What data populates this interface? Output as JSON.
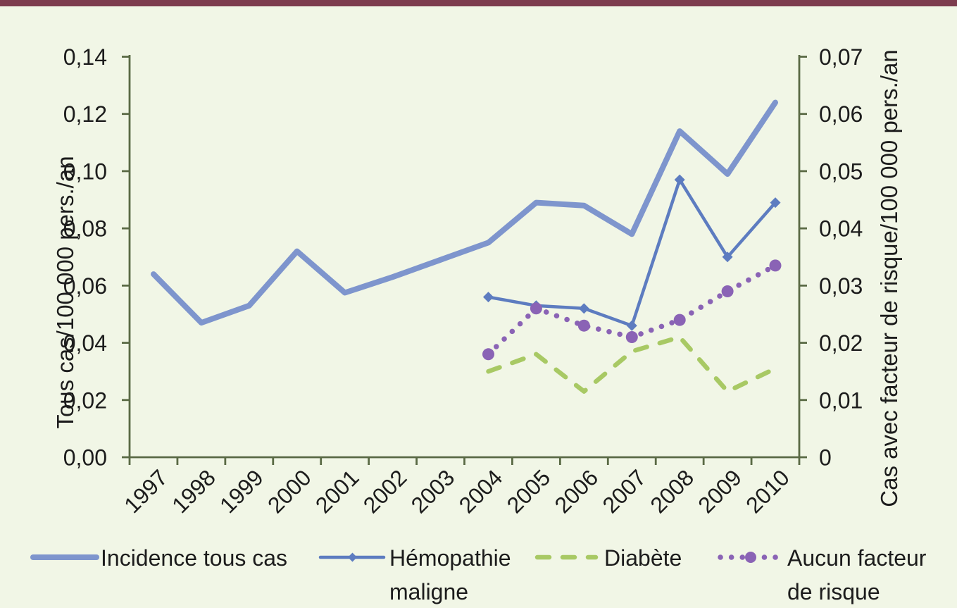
{
  "page": {
    "background_color": "#f1f6e6",
    "top_bar_color": "#7d3c4e"
  },
  "chart_data": {
    "type": "line",
    "title": "",
    "categories": [
      "1997",
      "1998",
      "1999",
      "2000",
      "2001",
      "2002",
      "2003",
      "2004",
      "2005",
      "2006",
      "2007",
      "2008",
      "2009",
      "2010"
    ],
    "left_axis": {
      "title": "Tous cas/100 000 pers./an",
      "min": 0,
      "max": 0.14,
      "tick_step": 0.02,
      "tick_labels": [
        "0,00",
        "0,02",
        "0,04",
        "0,06",
        "0,08",
        "0,10",
        "0,12",
        "0,14"
      ]
    },
    "right_axis": {
      "title": "Cas avec facteur de risque/100 000 pers./an",
      "min": 0,
      "max": 0.07,
      "tick_step": 0.01,
      "tick_labels": [
        "0",
        "0,01",
        "0,02",
        "0,03",
        "0,04",
        "0,05",
        "0,06",
        "0,07"
      ]
    },
    "axis_color": "#5a6a45",
    "text_color": "#1c1c1c",
    "grid": "off",
    "legend_position": "bottom",
    "series": [
      {
        "name": "Incidence tous cas",
        "axis": "left",
        "color": "#7e95cd",
        "style": "solid",
        "marker": "none",
        "line_width": 8,
        "start_year": "1997",
        "values": [
          0.064,
          0.047,
          0.053,
          0.072,
          0.0575,
          0.063,
          0.069,
          0.075,
          0.089,
          0.088,
          0.078,
          0.114,
          0.099,
          0.124
        ]
      },
      {
        "name": "Hémopathie maligne",
        "axis": "right",
        "color": "#5d7cc0",
        "style": "solid",
        "marker": "diamond",
        "line_width": 4.5,
        "start_year": "2004",
        "values": [
          0.028,
          0.0265,
          0.026,
          0.023,
          0.0485,
          0.035,
          0.0445
        ]
      },
      {
        "name": "Diabète",
        "axis": "right",
        "color": "#a8c964",
        "style": "dashed",
        "marker": "none",
        "line_width": 6.5,
        "start_year": "2004",
        "values": [
          0.015,
          0.018,
          0.0115,
          0.0185,
          0.021,
          0.0115,
          0.0155
        ]
      },
      {
        "name": "Aucun facteur de risque",
        "axis": "right",
        "color": "#8a63b5",
        "style": "dotted",
        "marker": "circle",
        "line_width": 7.5,
        "start_year": "2004",
        "values": [
          0.018,
          0.026,
          0.023,
          0.021,
          0.024,
          0.029,
          0.0335
        ]
      }
    ],
    "legend": {
      "items": [
        {
          "label": "Incidence tous cas",
          "label_line2": ""
        },
        {
          "label": "Hémopathie",
          "label_line2": "maligne"
        },
        {
          "label": "Diabète",
          "label_line2": ""
        },
        {
          "label": "Aucun facteur",
          "label_line2": "de risque"
        }
      ]
    }
  }
}
